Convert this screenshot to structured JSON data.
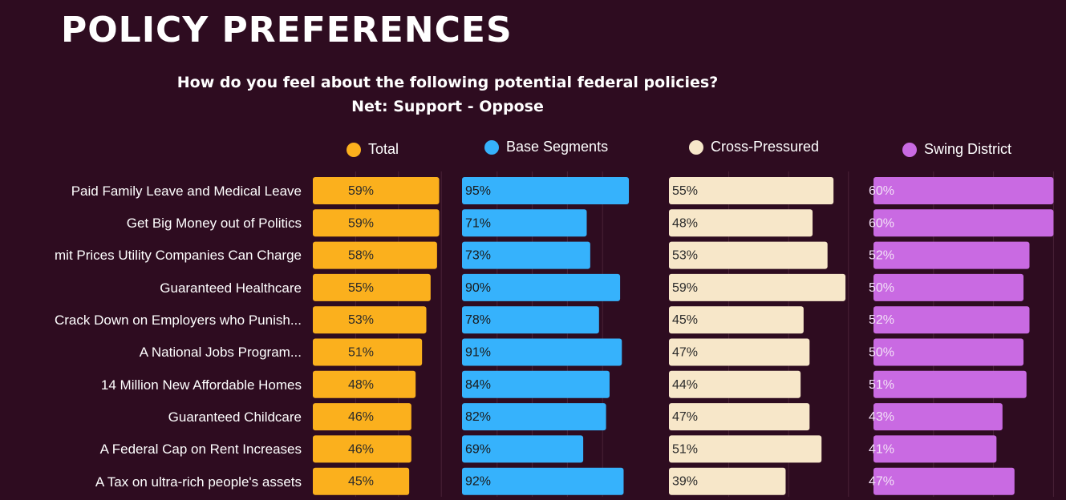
{
  "header": {
    "title": "POLICY PREFERENCES",
    "subtitle_line1": "How do you feel about the following potential federal policies?",
    "subtitle_line2": "Net: Support - Oppose"
  },
  "legend": [
    {
      "name": "Total",
      "color": "#fbb01d"
    },
    {
      "name": "Base Segments",
      "color": "#36b2fc"
    },
    {
      "name": "Cross-Pressured",
      "color": "#f7e7c9"
    },
    {
      "name": "Swing District",
      "color": "#c96ae2"
    }
  ],
  "chart_data": {
    "type": "bar",
    "orientation": "horizontal",
    "title": "POLICY PREFERENCES",
    "subtitle": "How do you feel about the following potential federal policies? Net: Support - Oppose",
    "categories": [
      "Paid Family Leave and Medical Leave",
      "Get Big Money out of Politics",
      "mit Prices Utility Companies Can Charge",
      "Guaranteed Healthcare",
      "Crack Down on Employers who Punish...",
      "A National Jobs Program...",
      "14 Million New Affordable Homes",
      "Guaranteed Childcare",
      "A Federal Cap on Rent Increases",
      "A Tax on ultra-rich people's assets"
    ],
    "series": [
      {
        "name": "Total",
        "color": "#fbb01d",
        "values": [
          59,
          59,
          58,
          55,
          53,
          51,
          48,
          46,
          46,
          45
        ],
        "labels": [
          "59%",
          "59%",
          "58%",
          "55%",
          "53%",
          "51%",
          "48%",
          "46%",
          "46%",
          "45%"
        ]
      },
      {
        "name": "Base Segments",
        "color": "#36b2fc",
        "values": [
          95,
          71,
          73,
          90,
          78,
          91,
          84,
          82,
          69,
          92
        ],
        "labels": [
          "95%",
          "71%",
          "73%",
          "90%",
          "78%",
          "91%",
          "84%",
          "82%",
          "69%",
          "92%"
        ]
      },
      {
        "name": "Cross-Pressured",
        "color": "#f7e7c9",
        "values": [
          55,
          48,
          53,
          59,
          45,
          47,
          44,
          47,
          51,
          39
        ],
        "labels": [
          "55%",
          "48%",
          "53%",
          "59%",
          "45%",
          "47%",
          "44%",
          "47%",
          "51%",
          "39%"
        ]
      },
      {
        "name": "Swing District",
        "color": "#c96ae2",
        "values": [
          60,
          60,
          52,
          50,
          52,
          50,
          51,
          43,
          41,
          47
        ],
        "labels": [
          "60%",
          "60%",
          "52%",
          "50%",
          "52%",
          "50%",
          "51%",
          "43%",
          "41%",
          "47%"
        ]
      }
    ],
    "label_colors": [
      "#2b2b2b",
      "#1a1a1a",
      "#2b2b2b",
      "#f3e0f7"
    ],
    "xlim": [
      0,
      100
    ],
    "grid": true,
    "legend_position": "top"
  }
}
